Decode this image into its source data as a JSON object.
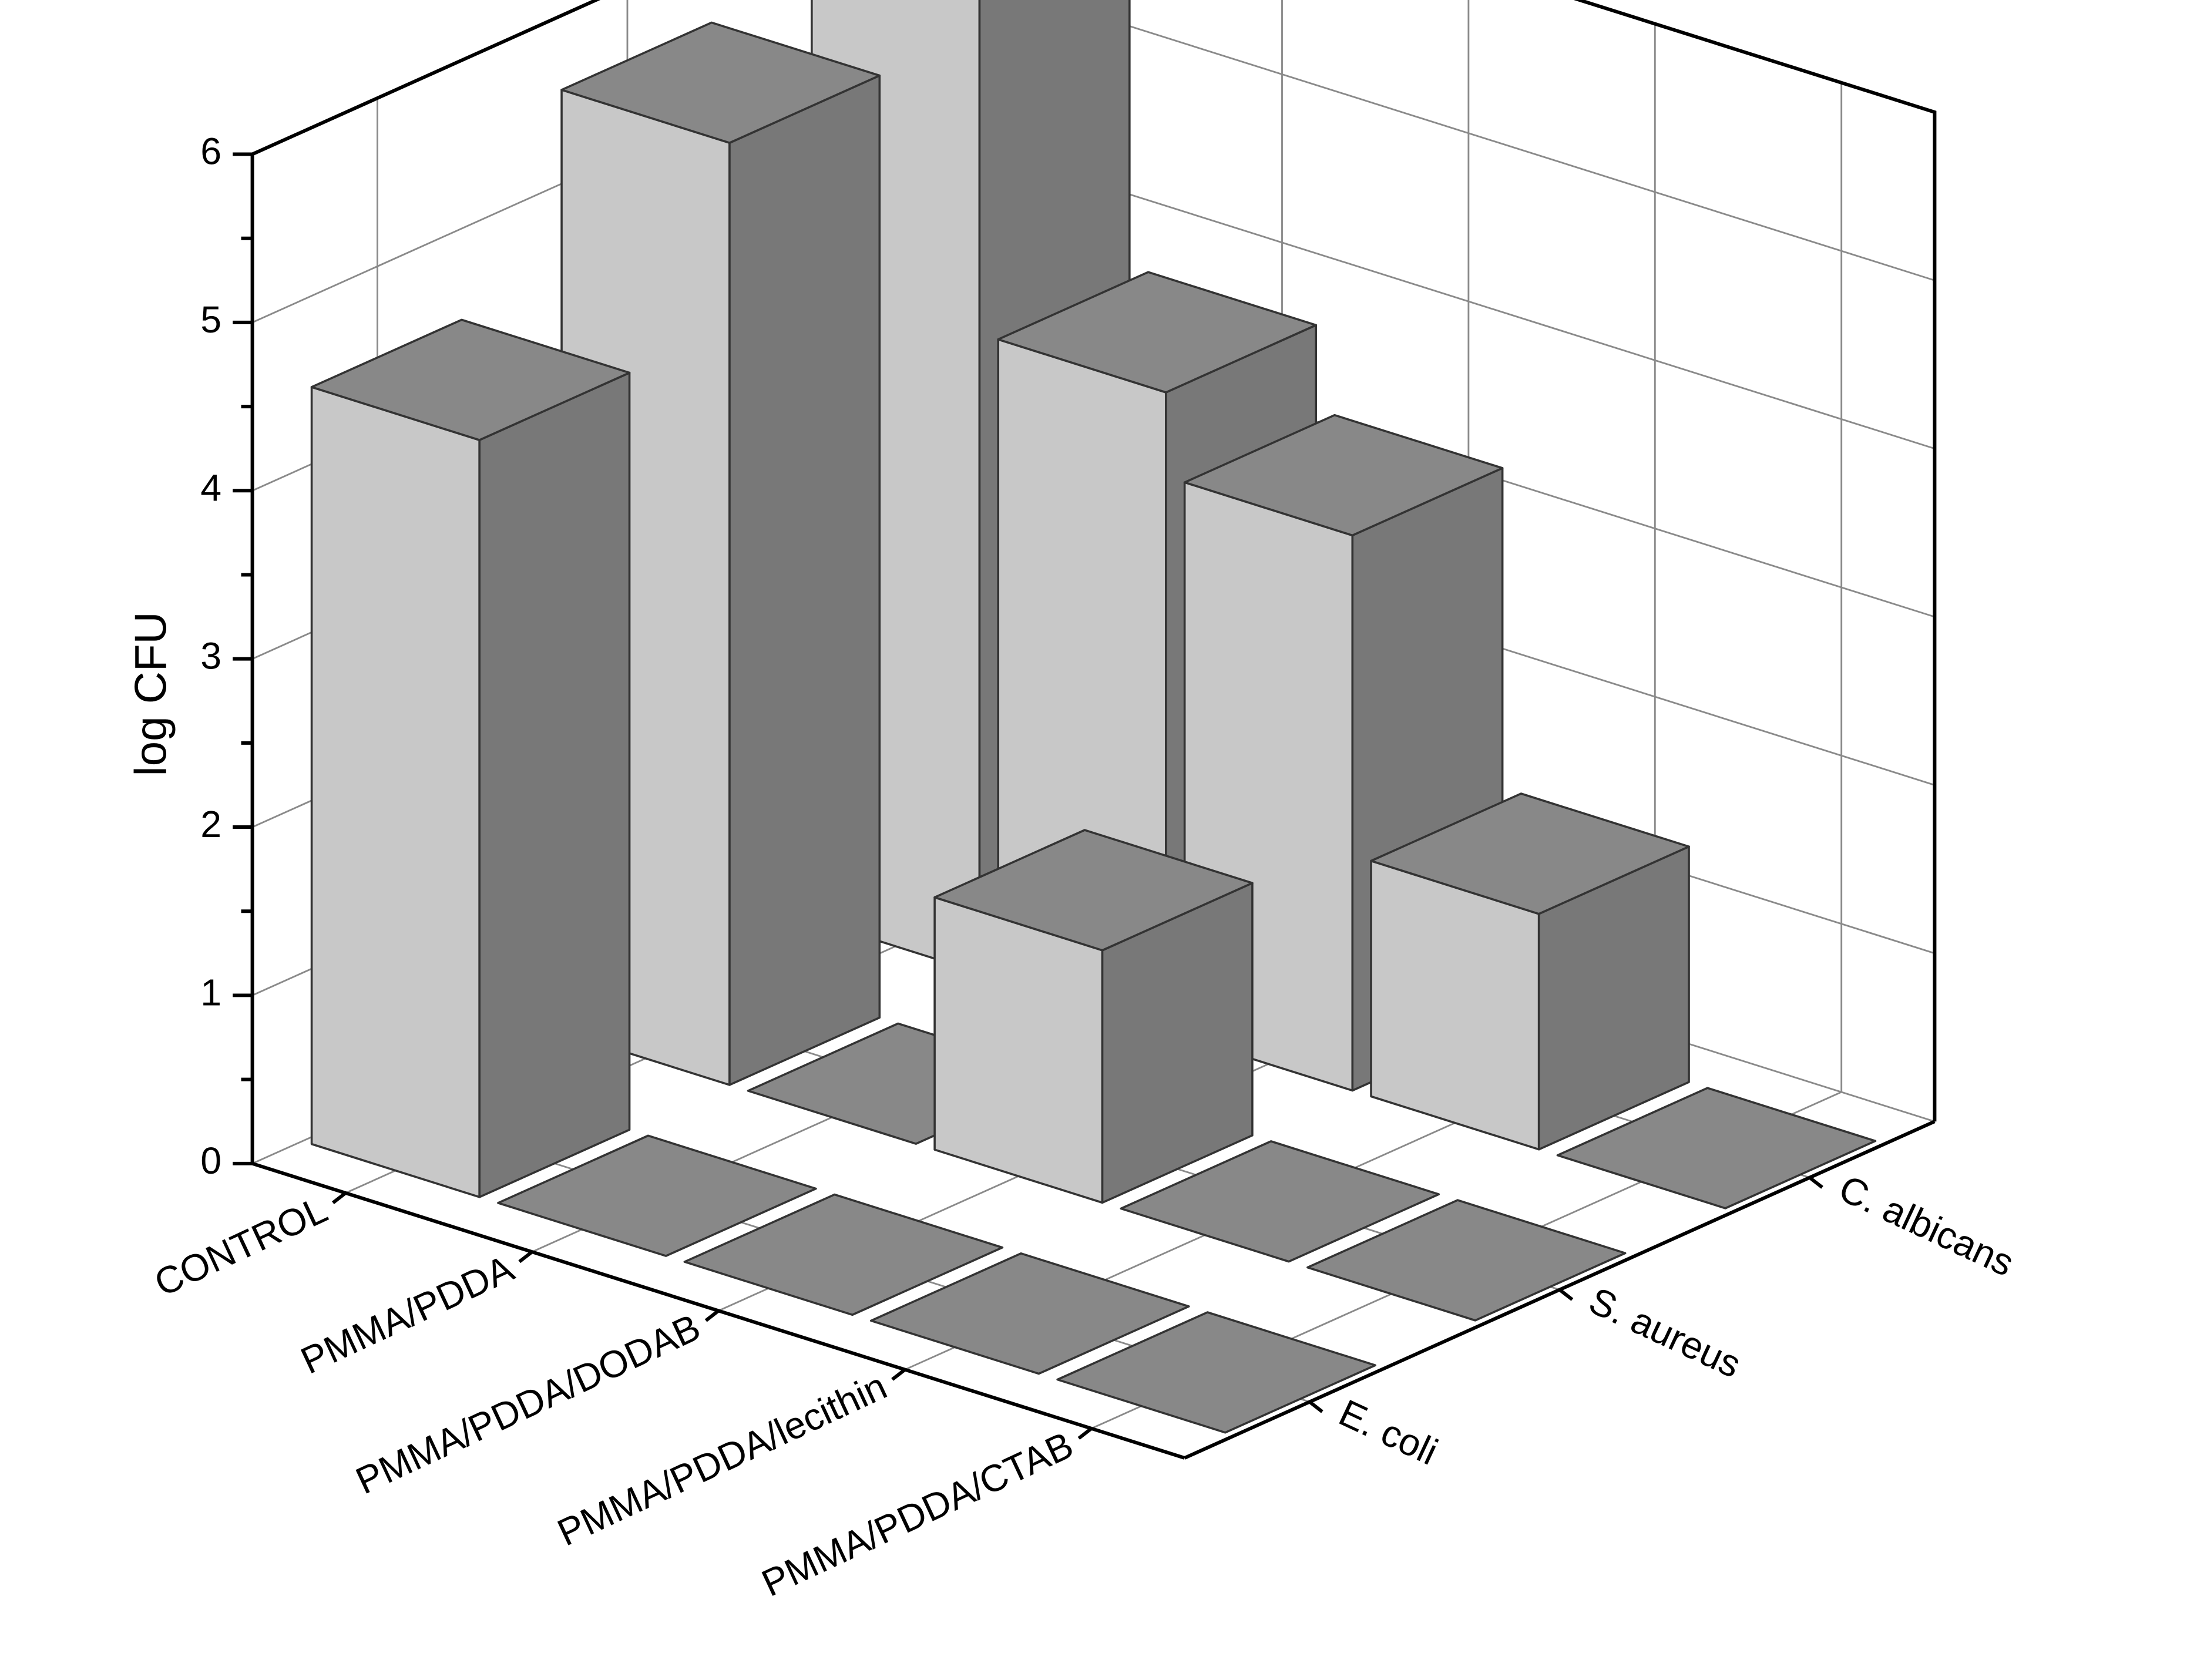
{
  "chart_data": {
    "type": "bar3d",
    "zlabel": "log CFU",
    "categories": [
      "CONTROL",
      "PMMA/PDDA",
      "PMMA/PDDA/DODAB",
      "PMMA/PDDA/lecithin",
      "PMMA/PDDA/CTAB"
    ],
    "series": [
      {
        "name": "E. coli",
        "color": "#c8c8c8",
        "values": [
          4.5,
          0,
          0,
          0,
          0
        ]
      },
      {
        "name": "S. aureus",
        "color": "#c8c8c8",
        "values": [
          5.6,
          0,
          1.5,
          0,
          0
        ]
      },
      {
        "name": "C. albicans",
        "color": "#c8c8c8",
        "values": [
          5.9,
          3.8,
          3.3,
          1.4,
          0
        ]
      }
    ],
    "zlim": [
      0,
      6
    ],
    "zticks": [
      0,
      1,
      2,
      3,
      4,
      5,
      6
    ],
    "grid": true
  }
}
